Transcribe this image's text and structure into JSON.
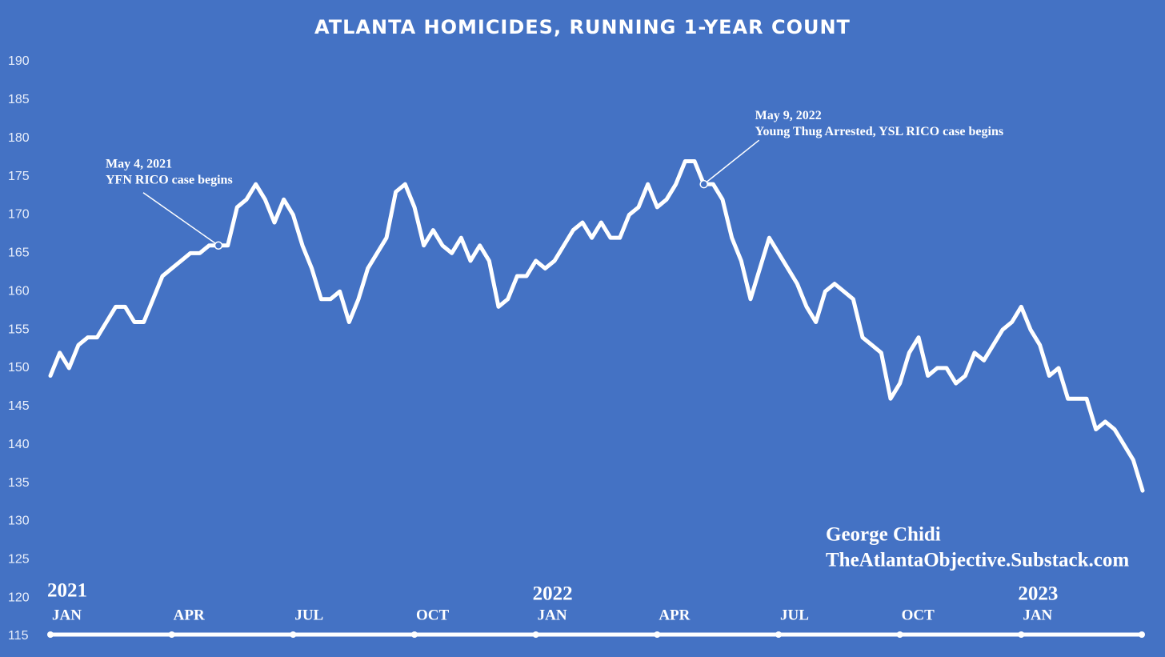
{
  "chart_data": {
    "type": "line",
    "title": "ATLANTA HOMICIDES, RUNNING 1-YEAR COUNT",
    "series": [
      {
        "color": "#ffffff",
        "values": [
          149,
          152,
          150,
          153,
          154,
          154,
          156,
          158,
          158,
          156,
          156,
          159,
          162,
          163,
          164,
          165,
          165,
          166,
          166,
          166,
          171,
          172,
          174,
          172,
          169,
          172,
          170,
          166,
          163,
          159,
          159,
          160,
          156,
          159,
          163,
          165,
          167,
          173,
          174,
          171,
          166,
          168,
          166,
          165,
          167,
          164,
          166,
          164,
          158,
          159,
          162,
          162,
          164,
          163,
          164,
          166,
          168,
          169,
          167,
          169,
          167,
          167,
          170,
          171,
          174,
          171,
          172,
          174,
          177,
          177,
          174,
          174,
          172,
          167,
          164,
          159,
          163,
          167,
          165,
          163,
          161,
          158,
          156,
          160,
          161,
          160,
          159,
          154,
          153,
          152,
          146,
          148,
          152,
          154,
          149,
          150,
          150,
          148,
          149,
          152,
          151,
          153,
          155,
          156,
          158,
          155,
          153,
          149,
          150,
          146,
          146,
          146,
          142,
          143,
          142,
          140,
          138,
          134
        ]
      }
    ],
    "xlim": [
      0,
      117
    ],
    "xticks": [
      {
        "value": 0,
        "label": "JAN"
      },
      {
        "value": 13,
        "label": "APR"
      },
      {
        "value": 26,
        "label": "JUL"
      },
      {
        "value": 39,
        "label": "OCT"
      },
      {
        "value": 52,
        "label": "JAN"
      },
      {
        "value": 65,
        "label": "APR"
      },
      {
        "value": 78,
        "label": "JUL"
      },
      {
        "value": 91,
        "label": "OCT"
      },
      {
        "value": 104,
        "label": "JAN"
      }
    ],
    "years": [
      "2021",
      "2022",
      "2023"
    ],
    "ylim": [
      115,
      190
    ],
    "yticks": [
      115,
      120,
      125,
      130,
      135,
      140,
      145,
      150,
      155,
      160,
      165,
      170,
      175,
      180,
      185,
      190
    ],
    "annotations": [
      {
        "x": 18,
        "y": 166,
        "lines": [
          "May 4, 2021",
          "YFN RICO case begins"
        ]
      },
      {
        "x": 70,
        "y": 174,
        "lines": [
          "May 9, 2022",
          "Young Thug Arrested, YSL RICO case begins"
        ]
      }
    ],
    "credit": [
      "George Chidi",
      "TheAtlantaObjective.Substack.com"
    ]
  }
}
